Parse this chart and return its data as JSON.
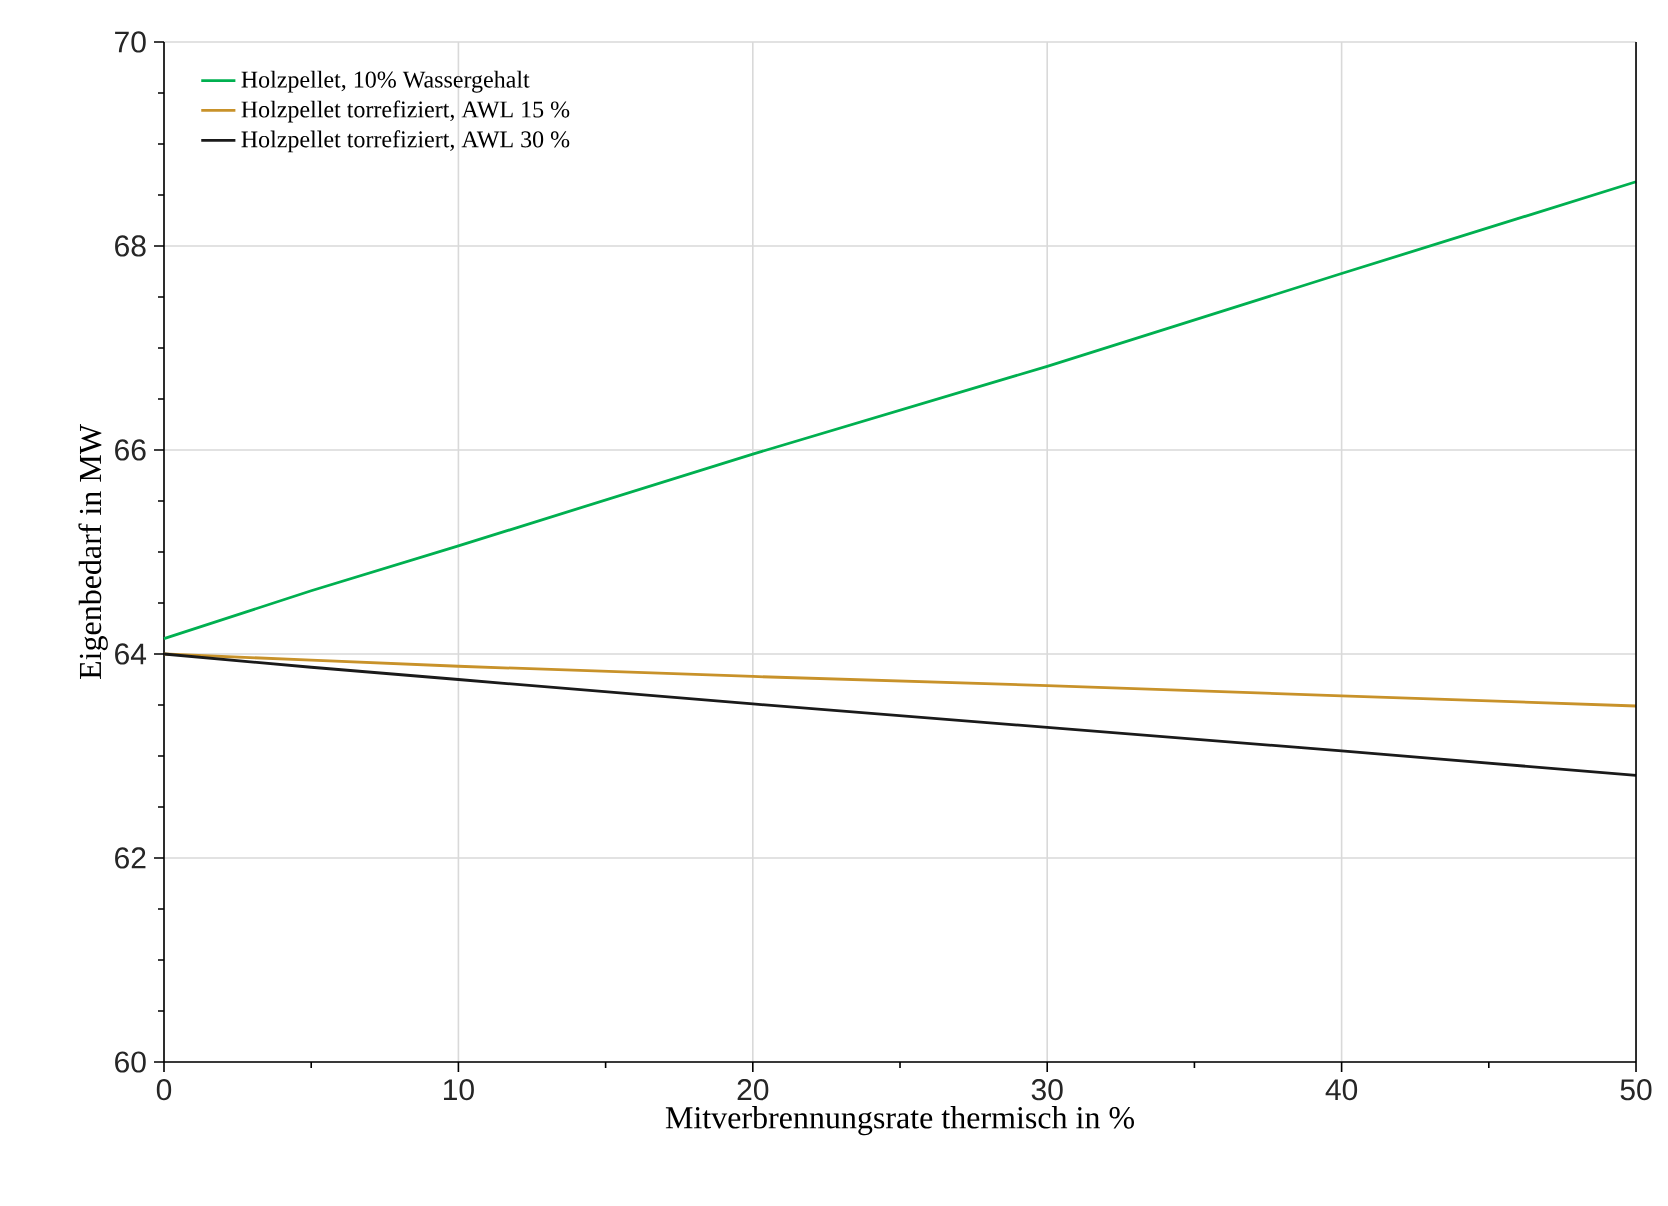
{
  "chart_data": {
    "type": "line",
    "xlabel": "Mitverbrennungsrate thermisch in %",
    "ylabel": "Eigenbedarf in MW",
    "x": [
      0,
      5,
      10,
      20,
      30,
      40,
      50
    ],
    "series": [
      {
        "name": "Holzpellet, 10% Wassergehalt",
        "color": "#00b050",
        "values": [
          64.15,
          64.62,
          65.06,
          65.96,
          66.82,
          67.73,
          68.63
        ]
      },
      {
        "name": "Holzpellet torrefiziert, AWL 15 %",
        "color": "#c8922a",
        "values": [
          64.0,
          63.94,
          63.88,
          63.78,
          63.69,
          63.59,
          63.49
        ]
      },
      {
        "name": "Holzpellet torrefiziert, AWL 30 %",
        "color": "#1a1a1a",
        "values": [
          64.0,
          63.87,
          63.75,
          63.51,
          63.28,
          63.05,
          62.81
        ]
      }
    ],
    "xlim": [
      0,
      50
    ],
    "xticks": [
      0,
      10,
      20,
      30,
      40,
      50
    ],
    "ylim": [
      60,
      70
    ],
    "yticks": [
      60,
      62,
      64,
      66,
      68,
      70
    ],
    "grid": true,
    "legend": "top left",
    "marker": "none",
    "line_style": "solid"
  }
}
